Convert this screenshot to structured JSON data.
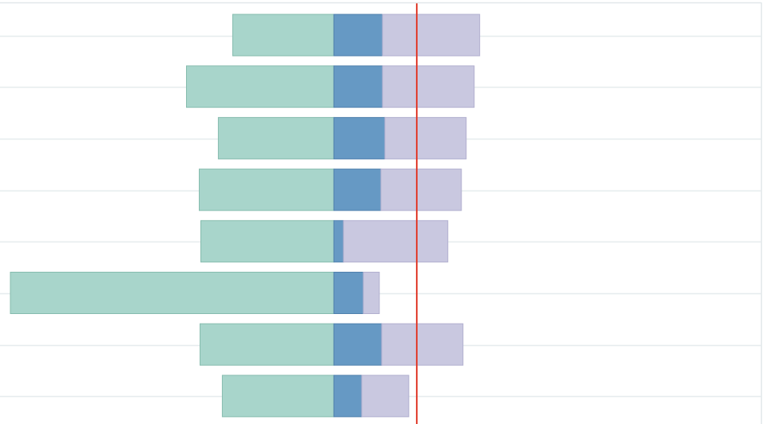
{
  "chart_data": {
    "type": "bar",
    "orientation": "horizontal",
    "stacked": true,
    "title": "",
    "xlabel": "",
    "ylabel": "",
    "grid": true,
    "legend": "none",
    "categories": [
      "",
      "",
      "",
      "",
      "",
      "",
      "",
      ""
    ],
    "series": [
      {
        "color": "#a8d5cb",
        "stroke": "#86bcae",
        "values": [
          -127,
          -185,
          -145,
          -169,
          -167,
          -406,
          -168,
          -140
        ]
      },
      {
        "color": "#6699c4",
        "stroke": "#4f80ad",
        "values": [
          61,
          61,
          64,
          59,
          12,
          37,
          60,
          35
        ]
      },
      {
        "color": "#c9c8e0",
        "stroke": "#b1afcf",
        "values": [
          122,
          115,
          102,
          101,
          131,
          20,
          102,
          59
        ]
      }
    ],
    "reference_line": {
      "value": 104,
      "color": "#e03b2b"
    },
    "xlim": [
      -419,
      536
    ],
    "colors": {
      "gridline": "#e6ecee",
      "border": "#e2e8ea",
      "background": "#ffffff"
    }
  }
}
